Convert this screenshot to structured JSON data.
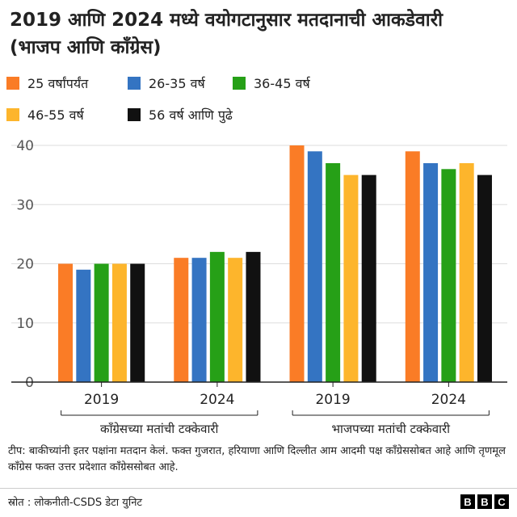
{
  "title": "2019 आणि 2024 मध्ये वयोगटानुसार मतदानाची आकडेवारी  (भाजप आणि काँग्रेस)",
  "note": "टीप: बाकीच्यांनी इतर पक्षांना मतदान केलं. फक्त गुजरात, हरियाणा आणि दिल्लीत आम आदमी पक्ष काँग्रेससोबत आहे आणि तृणमूल काँग्रेस फक्त उत्तर प्रदेशात काँग्रेससोबत आहे.",
  "source": "स्रोत : लोकनीती-CSDS डेटा युनिट",
  "logo": [
    "B",
    "B",
    "C"
  ],
  "chart_data": {
    "type": "bar",
    "title": "2019 आणि 2024 मध्ये वयोगटानुसार मतदानाची आकडेवारी  (भाजप आणि काँग्रेस)",
    "groups": [
      "काँग्रेसच्या मतांची टक्केवारी",
      "भाजपच्या मतांची टक्केवारी"
    ],
    "categories": [
      "2019",
      "2024",
      "2019",
      "2024"
    ],
    "ylim": [
      0,
      40
    ],
    "yticks": [
      0,
      10,
      20,
      30,
      40
    ],
    "grid": true,
    "legend_position": "top",
    "series": [
      {
        "name": "25 वर्षांपर्यंत",
        "color": "#fa7c26",
        "values": [
          20,
          21,
          40,
          39
        ]
      },
      {
        "name": "26-35 वर्ष",
        "color": "#3474c2",
        "values": [
          19,
          21,
          39,
          37
        ]
      },
      {
        "name": "36-45 वर्ष",
        "color": "#26a017",
        "values": [
          20,
          22,
          37,
          36
        ]
      },
      {
        "name": "46-55 वर्ष",
        "color": "#fdb52c",
        "values": [
          20,
          21,
          35,
          37
        ]
      },
      {
        "name": "56 वर्ष  आणि पुढे",
        "color": "#111111",
        "values": [
          20,
          22,
          35,
          35
        ]
      }
    ]
  }
}
